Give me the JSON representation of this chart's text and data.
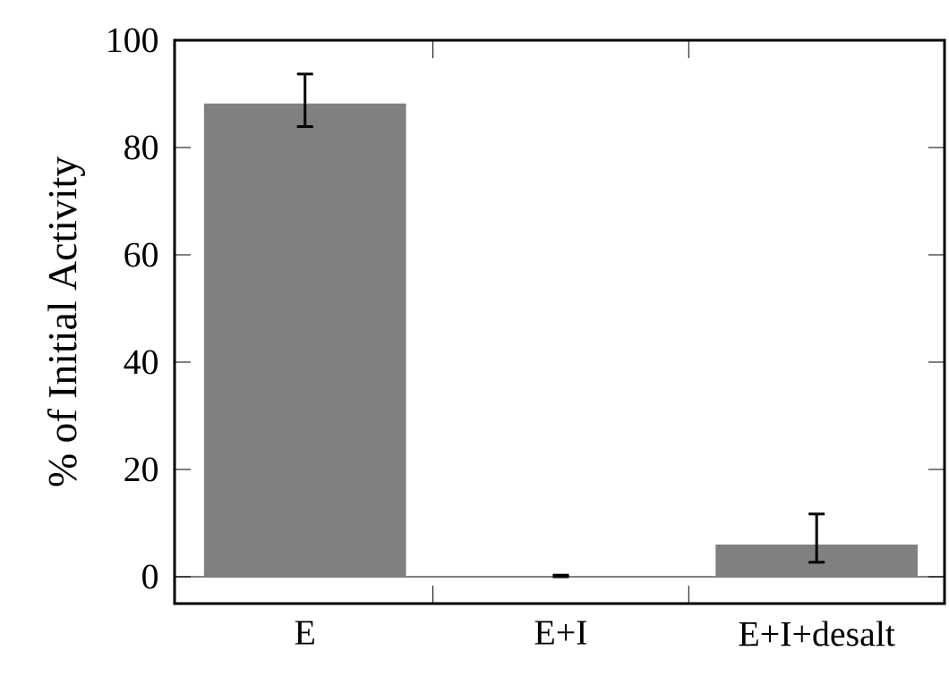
{
  "chart_data": {
    "type": "bar",
    "ylabel": "% of Initial Activity",
    "categories": [
      "E",
      "E+I",
      "E+I+desalt"
    ],
    "values": [
      88.2,
      0.1,
      6.0
    ],
    "errors": [
      [
        83.9,
        93.7
      ],
      [
        0.0,
        0.3
      ],
      [
        2.7,
        11.7
      ]
    ],
    "color": "#808080",
    "ylim": [
      -5,
      100
    ],
    "yticks": [
      0,
      20,
      40,
      60,
      80,
      100
    ],
    "ref_lines": [
      {
        "axis": "y",
        "value": 0,
        "color": "#000000"
      }
    ]
  }
}
